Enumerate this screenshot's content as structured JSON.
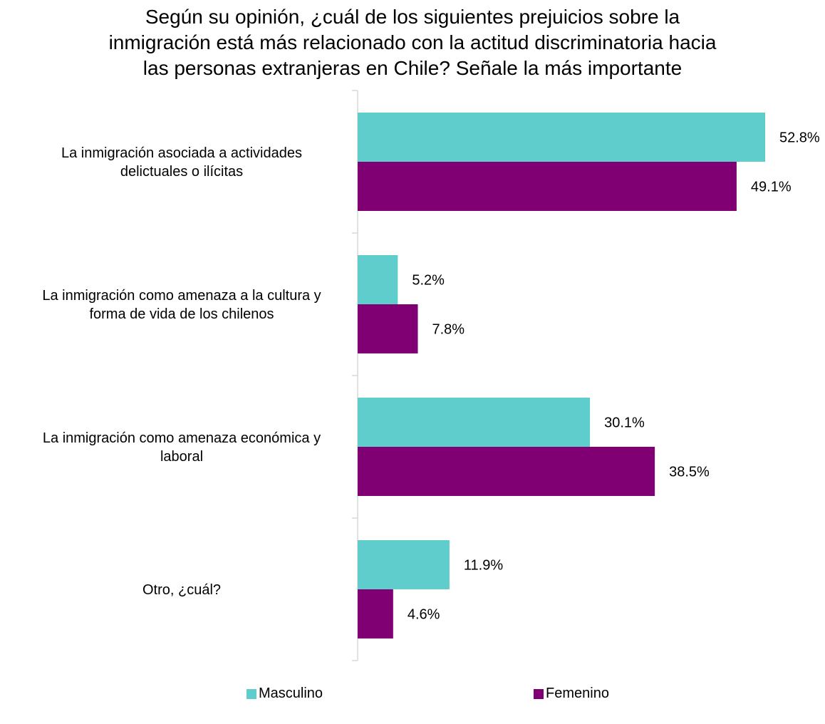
{
  "title_lines": [
    "Según su opinión, ¿cuál de los siguientes prejuicios sobre la",
    "inmigración está más relacionado con la actitud discriminatoria hacia",
    "las personas extranjeras en Chile? Señale la más importante"
  ],
  "colors": {
    "masculino": "#5ECDCB",
    "femenino": "#800073",
    "axis": "#d9d9d9"
  },
  "chart_data": {
    "type": "bar",
    "orientation": "horizontal",
    "title": "Según su opinión, ¿cuál de los siguientes prejuicios sobre la inmigración está más relacionado con la actitud discriminatoria hacia las personas extranjeras en Chile? Señale la más importante",
    "categories": [
      [
        "La inmigración asociada a actividades",
        "delictuales o ilícitas"
      ],
      [
        "La inmigración como amenaza a la cultura y",
        "forma de vida de los chilenos"
      ],
      [
        "La inmigración como amenaza económica y",
        "laboral"
      ],
      [
        "Otro, ¿cuál?"
      ]
    ],
    "series": [
      {
        "name": "Masculino",
        "values": [
          52.8,
          5.2,
          30.1,
          11.9
        ],
        "labels": [
          "52.8%",
          "5.2%",
          "30.1%",
          "11.9%"
        ]
      },
      {
        "name": "Femenino",
        "values": [
          49.1,
          7.8,
          38.5,
          4.6
        ],
        "labels": [
          "49.1%",
          "7.8%",
          "38.5%",
          "4.6%"
        ]
      }
    ],
    "xlim": [
      0,
      52.8
    ],
    "grid": false,
    "legend_position": "bottom"
  }
}
